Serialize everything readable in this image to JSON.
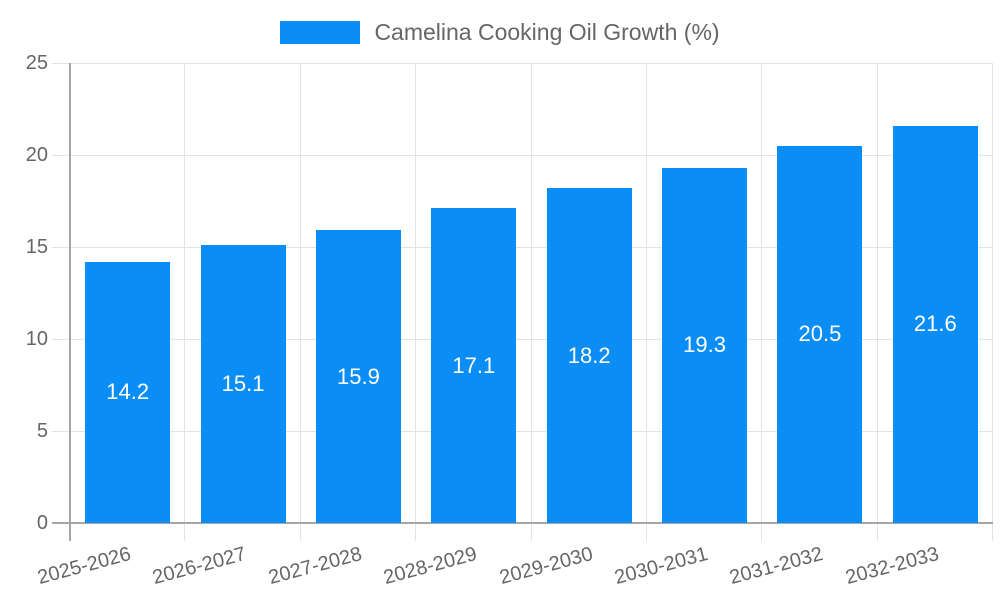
{
  "legend": {
    "label": "Camelina Cooking Oil Growth (%)"
  },
  "colors": {
    "bar": "#0a8df5",
    "axis_line": "#a6a6a6",
    "gridline": "#e3e3e3",
    "tick_label": "#666666",
    "legend_text": "#666666",
    "value_label": "#ffffff",
    "background": "#ffffff"
  },
  "chart_data": {
    "type": "bar",
    "title": "",
    "legend_entries": [
      "Camelina Cooking Oil Growth (%)"
    ],
    "legend_position": "top-center",
    "categories": [
      "2025-2026",
      "2026-2027",
      "2027-2028",
      "2028-2029",
      "2029-2030",
      "2030-2031",
      "2031-2032",
      "2032-2033"
    ],
    "values": [
      14.2,
      15.1,
      15.9,
      17.1,
      18.2,
      19.3,
      20.5,
      21.6
    ],
    "value_labels_visible": true,
    "value_label_position": "inside-center",
    "xlabel": "",
    "ylabel": "",
    "ylim": [
      0,
      25
    ],
    "yticks": [
      0,
      5,
      10,
      15,
      20,
      25
    ],
    "grid": true,
    "x_tick_rotation_deg": -15
  }
}
